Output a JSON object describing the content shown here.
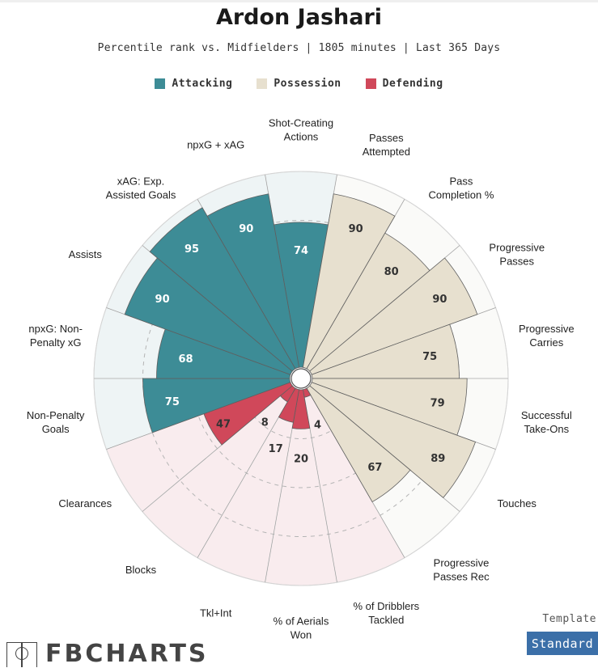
{
  "header": {
    "title": "Ardon Jashari",
    "subtitle": "Percentile rank vs. Midfielders | 1805 minutes | Last 365 Days"
  },
  "legend": [
    {
      "label": "Attacking",
      "color": "#3d8c96"
    },
    {
      "label": "Possession",
      "color": "#e7e0cf"
    },
    {
      "label": "Defending",
      "color": "#d0485a"
    }
  ],
  "chart_data": {
    "type": "polar-bar",
    "title": "Ardon Jashari",
    "subtitle": "Percentile rank vs. Midfielders | 1805 minutes | Last 365 Days",
    "range": [
      0,
      100
    ],
    "categories": [
      {
        "label": "Shot-Creating Actions",
        "value": 74,
        "group": "Attacking"
      },
      {
        "label": "Passes Attempted",
        "value": 90,
        "group": "Possession"
      },
      {
        "label": "Pass Completion %",
        "value": 80,
        "group": "Possession"
      },
      {
        "label": "Progressive Passes",
        "value": 90,
        "group": "Possession"
      },
      {
        "label": "Progressive Carries",
        "value": 75,
        "group": "Possession"
      },
      {
        "label": "Successful Take-Ons",
        "value": 79,
        "group": "Possession"
      },
      {
        "label": "Touches",
        "value": 89,
        "group": "Possession"
      },
      {
        "label": "Progressive Passes Rec",
        "value": 67,
        "group": "Possession"
      },
      {
        "label": "% of Dribblers Tackled",
        "value": 4,
        "group": "Defending"
      },
      {
        "label": "% of Aerials Won",
        "value": 20,
        "group": "Defending"
      },
      {
        "label": "Tkl+Int",
        "value": 17,
        "group": "Defending"
      },
      {
        "label": "Blocks",
        "value": 8,
        "group": "Defending"
      },
      {
        "label": "Clearances",
        "value": 47,
        "group": "Defending"
      },
      {
        "label": "Non-Penalty Goals",
        "value": 75,
        "group": "Attacking"
      },
      {
        "label": "npxG: Non-Penalty xG",
        "value": 68,
        "group": "Attacking"
      },
      {
        "label": "Assists",
        "value": 90,
        "group": "Attacking"
      },
      {
        "label": "xAG: Exp. Assisted Goals",
        "value": 95,
        "group": "Attacking"
      },
      {
        "label": "npxG + xAG",
        "value": 90,
        "group": "Attacking"
      }
    ],
    "label_lines": [
      [
        "Shot-Creating",
        "Actions"
      ],
      [
        "Passes",
        "Attempted"
      ],
      [
        "Pass",
        "Completion %"
      ],
      [
        "Progressive",
        "Passes"
      ],
      [
        "Progressive",
        "Carries"
      ],
      [
        "Successful",
        "Take-Ons"
      ],
      [
        "Touches"
      ],
      [
        "Progressive",
        "Passes Rec"
      ],
      [
        "% of Dribblers",
        "Tackled"
      ],
      [
        "% of Aerials",
        "Won"
      ],
      [
        "Tkl+Int"
      ],
      [
        "Blocks"
      ],
      [
        "Clearances"
      ],
      [
        "Non-Penalty",
        "Goals"
      ],
      [
        "npxG: Non-",
        "Penalty xG"
      ],
      [
        "Assists"
      ],
      [
        "xAG: Exp.",
        "Assisted Goals"
      ],
      [
        "npxG + xAG"
      ]
    ],
    "group_colors": {
      "Attacking": {
        "bar": "#3d8c96",
        "bg": "#eef4f5",
        "value_text": "#ffffff"
      },
      "Possession": {
        "bar": "#e7e0cf",
        "bg": "#fafaf8",
        "value_text": "#333333"
      },
      "Defending": {
        "bar": "#d0485a",
        "bg": "#f9ecee",
        "value_text": "#333333"
      }
    }
  },
  "footer": {
    "logo_text": "FBCHARTS",
    "template_label": "Template",
    "template_button": "Standard"
  }
}
